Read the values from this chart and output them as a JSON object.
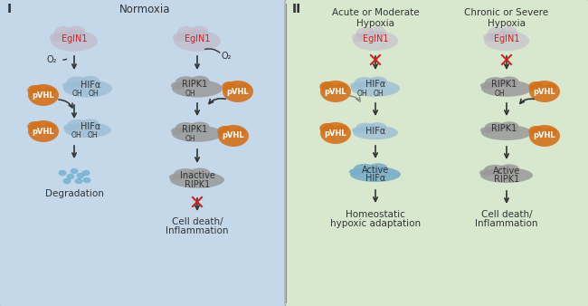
{
  "bg_left": "#c5d8ea",
  "bg_right": "#d8e8cf",
  "blob_egln1_color": "#c0b8c8",
  "blob_hifa_color": "#9bbdd4",
  "blob_ripk1_color": "#9a9a9a",
  "blob_pvhl_color": "#d4711a",
  "blob_active_hifa_color": "#7aaec8",
  "color_egln1_text": "#cc2222",
  "color_dark": "#333333",
  "color_arrow": "#333333",
  "color_red_cross": "#cc2222",
  "color_grey_arrow": "#777777",
  "color_white": "#ffffff",
  "color_degrad_blue": "#6aadce",
  "section_I": "I",
  "section_II": "II",
  "title_normoxia": "Normoxia",
  "title_acute": "Acute or Moderate\nHypoxia",
  "title_chronic": "Chronic or Severe\nHypoxia",
  "dpi": 100,
  "fig_w": 6.5,
  "fig_h": 3.38
}
